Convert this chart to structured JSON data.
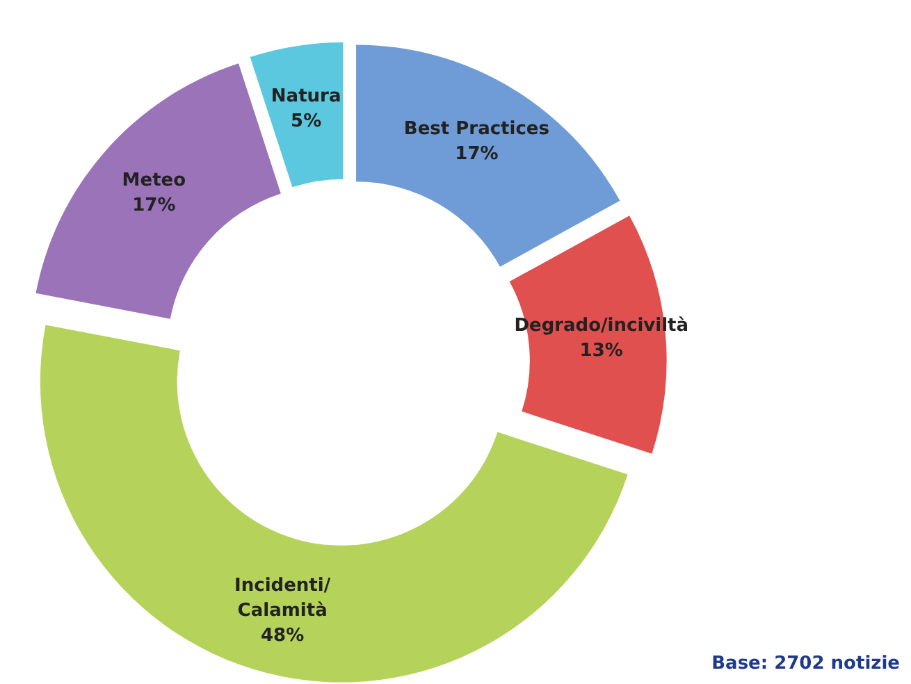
{
  "chart_data": {
    "type": "donut",
    "categories": [
      "Best Practices",
      "Degrado/inciviltà",
      "Incidenti/\nCalamità",
      "Meteo",
      "Natura"
    ],
    "values": [
      17,
      13,
      48,
      17,
      5
    ],
    "colors": [
      "#6f9bd6",
      "#e0504f",
      "#b5d35a",
      "#9a73b8",
      "#5bc8e0"
    ],
    "value_labels": [
      "17%",
      "13%",
      "48%",
      "17%",
      "5%"
    ],
    "legend": false,
    "annotations": [
      "Base: 2702 notizie"
    ]
  }
}
